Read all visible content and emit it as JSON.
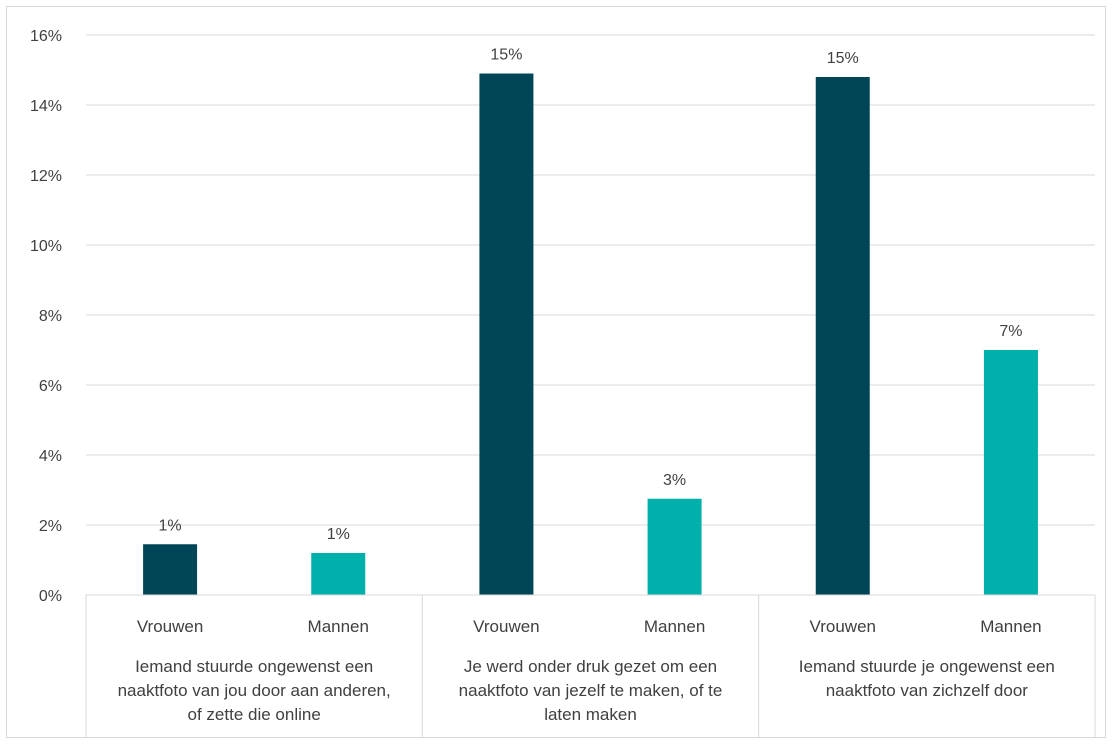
{
  "chart_data": {
    "type": "bar",
    "ylim": [
      0,
      0.16
    ],
    "yticks": [
      "0%",
      "2%",
      "4%",
      "6%",
      "8%",
      "10%",
      "12%",
      "14%",
      "16%"
    ],
    "grid": true,
    "groups": [
      {
        "label_lines": [
          "Iemand stuurde ongewenst een",
          "naaktfoto van jou door aan anderen,",
          "of zette die online"
        ],
        "bars": [
          {
            "category": "Vrouwen",
            "value": 0.0145,
            "label": "1%",
            "color": "#014656"
          },
          {
            "category": "Mannen",
            "value": 0.012,
            "label": "1%",
            "color": "#00b0aa"
          }
        ]
      },
      {
        "label_lines": [
          "Je werd onder druk gezet om een",
          "naaktfoto van jezelf te maken, of te",
          "laten maken"
        ],
        "bars": [
          {
            "category": "Vrouwen",
            "value": 0.149,
            "label": "15%",
            "color": "#014656"
          },
          {
            "category": "Mannen",
            "value": 0.0275,
            "label": "3%",
            "color": "#00b0aa"
          }
        ]
      },
      {
        "label_lines": [
          "Iemand stuurde je ongewenst een",
          "naaktfoto van zichzelf door"
        ],
        "bars": [
          {
            "category": "Vrouwen",
            "value": 0.148,
            "label": "15%",
            "color": "#014656"
          },
          {
            "category": "Mannen",
            "value": 0.07,
            "label": "7%",
            "color": "#00b0aa"
          }
        ]
      }
    ]
  }
}
